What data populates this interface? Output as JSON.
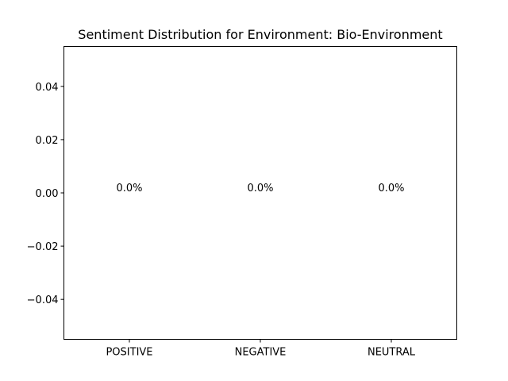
{
  "chart_data": {
    "type": "bar",
    "title": "Sentiment Distribution for Environment: Bio-Environment",
    "xlabel": "",
    "ylabel": "",
    "categories": [
      "POSITIVE",
      "NEGATIVE",
      "NEUTRAL"
    ],
    "values": [
      0,
      0,
      0
    ],
    "data_labels": [
      "0.0%",
      "0.0%",
      "0.0%"
    ],
    "ylim": [
      -0.055,
      0.055
    ],
    "yticks": [
      0.04,
      0.02,
      0.0,
      -0.02,
      -0.04
    ],
    "ytick_labels": [
      "0.04",
      "0.02",
      "0.00",
      "−0.02",
      "−0.04"
    ],
    "grid": false,
    "legend": "none"
  }
}
